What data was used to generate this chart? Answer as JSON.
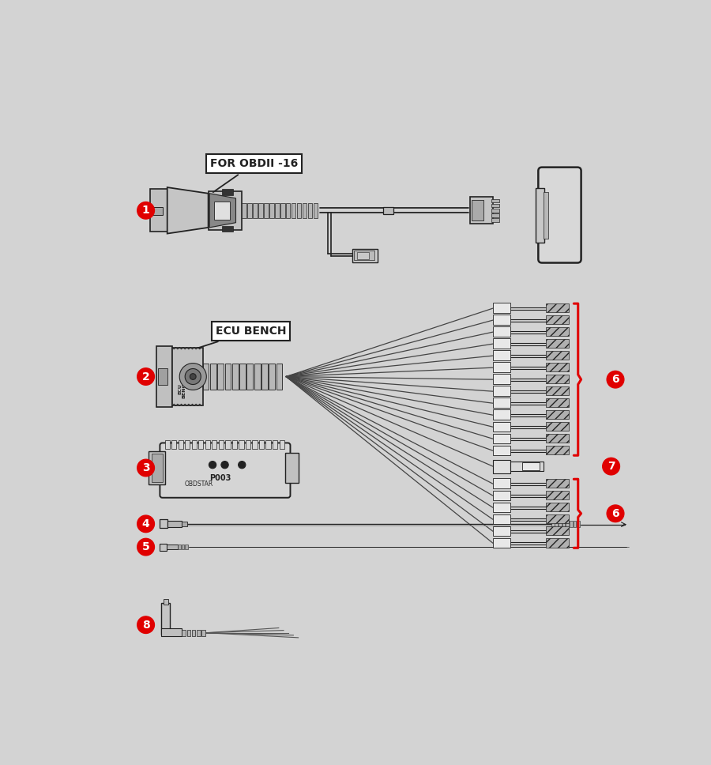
{
  "bg_color": "#d3d3d3",
  "fg_color": "#222222",
  "white": "#ffffff",
  "red": "#e00000",
  "dark_gray": "#888888",
  "mid_gray": "#aaaaaa",
  "light_gray": "#cccccc",
  "connector_gray": "#c8c8c8",
  "label1": "FOR OBDII -16",
  "label2": "ECU BENCH",
  "fig_w": 9.0,
  "fig_h": 9.68
}
